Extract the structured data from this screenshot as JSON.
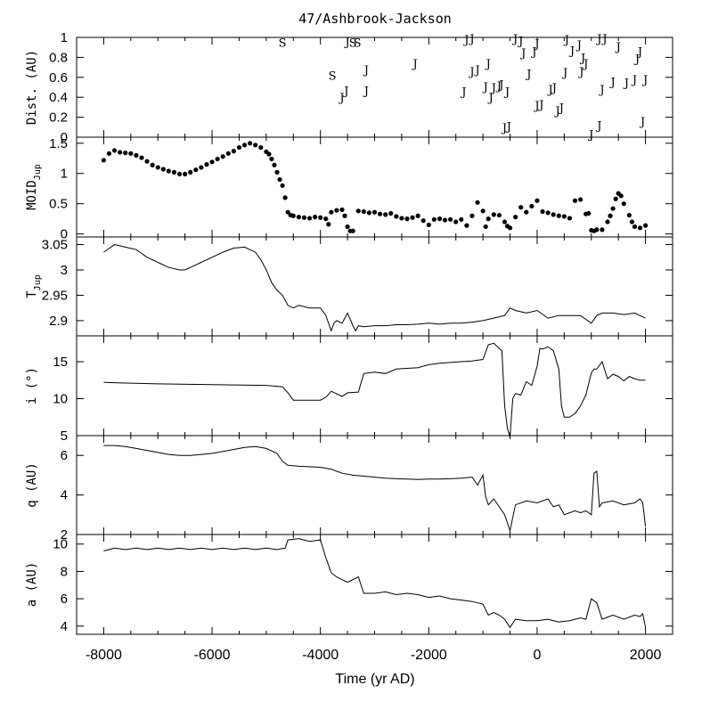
{
  "chart_data": [
    {
      "id": "dist",
      "type": "scatter",
      "title": "47/Ashbrook-Jackson",
      "ylabel": "Dist. (AU)",
      "ylim": [
        0,
        1
      ],
      "xlim": [
        -8500,
        2500
      ],
      "yticks": [
        0,
        0.2,
        0.4,
        0.6,
        0.8,
        1
      ],
      "ytick_labels": [
        "0",
        "0.2",
        "0.4",
        "0.6",
        "0.8",
        "1"
      ],
      "markers": [
        {
          "x": -4700,
          "y": 0.95,
          "label": "S"
        },
        {
          "x": -3780,
          "y": 0.62,
          "label": "S"
        },
        {
          "x": -3400,
          "y": 0.95,
          "label": "S"
        },
        {
          "x": -3320,
          "y": 0.95,
          "label": "S"
        },
        {
          "x": -3500,
          "y": 0.96,
          "label": "J"
        },
        {
          "x": -3600,
          "y": 0.4,
          "label": "J"
        },
        {
          "x": -3520,
          "y": 0.47,
          "label": "J"
        },
        {
          "x": -3150,
          "y": 0.47,
          "label": "J"
        },
        {
          "x": -3150,
          "y": 0.68,
          "label": "J"
        },
        {
          "x": -2250,
          "y": 0.74,
          "label": "J"
        },
        {
          "x": -1300,
          "y": 0.98,
          "label": "J"
        },
        {
          "x": -1200,
          "y": 0.99,
          "label": "J"
        },
        {
          "x": -1200,
          "y": 0.66,
          "label": "J"
        },
        {
          "x": -1100,
          "y": 0.68,
          "label": "J"
        },
        {
          "x": -1350,
          "y": 0.46,
          "label": "J"
        },
        {
          "x": -900,
          "y": 0.74,
          "label": "J"
        },
        {
          "x": -950,
          "y": 0.51,
          "label": "J"
        },
        {
          "x": -850,
          "y": 0.4,
          "label": "J"
        },
        {
          "x": -800,
          "y": 0.5,
          "label": "J"
        },
        {
          "x": -700,
          "y": 0.52,
          "label": "J"
        },
        {
          "x": -660,
          "y": 0.53,
          "label": "J"
        },
        {
          "x": -550,
          "y": 0.46,
          "label": "J"
        },
        {
          "x": -600,
          "y": 0.1,
          "label": "J"
        },
        {
          "x": -520,
          "y": 0.11,
          "label": "J"
        },
        {
          "x": -400,
          "y": 0.99,
          "label": "J"
        },
        {
          "x": -300,
          "y": 0.97,
          "label": "J"
        },
        {
          "x": -250,
          "y": 0.85,
          "label": "J"
        },
        {
          "x": -150,
          "y": 0.64,
          "label": "J"
        },
        {
          "x": -50,
          "y": 0.86,
          "label": "J"
        },
        {
          "x": 0,
          "y": 0.94,
          "label": "J"
        },
        {
          "x": 0,
          "y": 0.32,
          "label": "J"
        },
        {
          "x": 80,
          "y": 0.33,
          "label": "J"
        },
        {
          "x": 250,
          "y": 0.48,
          "label": "J"
        },
        {
          "x": 320,
          "y": 0.5,
          "label": "J"
        },
        {
          "x": 380,
          "y": 0.27,
          "label": "J"
        },
        {
          "x": 450,
          "y": 0.3,
          "label": "J"
        },
        {
          "x": 550,
          "y": 0.98,
          "label": "J"
        },
        {
          "x": 520,
          "y": 0.65,
          "label": "J"
        },
        {
          "x": 650,
          "y": 0.87,
          "label": "J"
        },
        {
          "x": 780,
          "y": 0.93,
          "label": "J"
        },
        {
          "x": 820,
          "y": 0.66,
          "label": "J"
        },
        {
          "x": 850,
          "y": 0.8,
          "label": "J"
        },
        {
          "x": 900,
          "y": 0.74,
          "label": "J"
        },
        {
          "x": 1000,
          "y": 0.03,
          "label": "J"
        },
        {
          "x": 1150,
          "y": 0.99,
          "label": "J"
        },
        {
          "x": 1250,
          "y": 0.99,
          "label": "J"
        },
        {
          "x": 1200,
          "y": 0.48,
          "label": "J"
        },
        {
          "x": 1150,
          "y": 0.12,
          "label": "J"
        },
        {
          "x": 1400,
          "y": 0.56,
          "label": "J"
        },
        {
          "x": 1500,
          "y": 0.91,
          "label": "J"
        },
        {
          "x": 1650,
          "y": 0.55,
          "label": "J"
        },
        {
          "x": 1850,
          "y": 0.79,
          "label": "J"
        },
        {
          "x": 1900,
          "y": 0.86,
          "label": "J"
        },
        {
          "x": 1800,
          "y": 0.58,
          "label": "J"
        },
        {
          "x": 2000,
          "y": 0.58,
          "label": "J"
        },
        {
          "x": 1950,
          "y": 0.16,
          "label": "J"
        }
      ]
    },
    {
      "id": "moid",
      "type": "scatter",
      "ylabel": "MOID",
      "ylabel_sub": "Jup",
      "ylim": [
        -0.05,
        1.6
      ],
      "xlim": [
        -8500,
        2500
      ],
      "yticks": [
        0,
        0.5,
        1,
        1.5
      ],
      "ytick_labels": [
        "0",
        "0.5",
        "1",
        "1.5"
      ],
      "x": [
        -8000,
        -7900,
        -7800,
        -7700,
        -7600,
        -7500,
        -7400,
        -7300,
        -7200,
        -7100,
        -7000,
        -6900,
        -6800,
        -6700,
        -6600,
        -6500,
        -6400,
        -6300,
        -6200,
        -6100,
        -6000,
        -5900,
        -5800,
        -5700,
        -5600,
        -5500,
        -5400,
        -5300,
        -5200,
        -5100,
        -5000,
        -4950,
        -4900,
        -4850,
        -4800,
        -4750,
        -4700,
        -4650,
        -4600,
        -4550,
        -4500,
        -4400,
        -4300,
        -4200,
        -4100,
        -4000,
        -3900,
        -3850,
        -3800,
        -3700,
        -3600,
        -3550,
        -3500,
        -3450,
        -3400,
        -3300,
        -3200,
        -3100,
        -3000,
        -2900,
        -2800,
        -2700,
        -2600,
        -2500,
        -2400,
        -2300,
        -2200,
        -2100,
        -2000,
        -1900,
        -1800,
        -1700,
        -1600,
        -1500,
        -1400,
        -1300,
        -1200,
        -1100,
        -1000,
        -950,
        -900,
        -800,
        -700,
        -600,
        -550,
        -500,
        -400,
        -300,
        -200,
        -100,
        0,
        100,
        200,
        300,
        400,
        500,
        600,
        700,
        800,
        900,
        950,
        1000,
        1050,
        1100,
        1200,
        1300,
        1350,
        1400,
        1450,
        1500,
        1550,
        1600,
        1700,
        1750,
        1800,
        1900,
        2000
      ],
      "values": [
        1.22,
        1.33,
        1.38,
        1.35,
        1.34,
        1.33,
        1.3,
        1.26,
        1.2,
        1.14,
        1.1,
        1.07,
        1.04,
        1.02,
        0.99,
        0.99,
        1.02,
        1.06,
        1.1,
        1.15,
        1.19,
        1.24,
        1.28,
        1.33,
        1.37,
        1.43,
        1.47,
        1.5,
        1.47,
        1.43,
        1.36,
        1.32,
        1.24,
        1.14,
        1.02,
        0.9,
        0.8,
        0.6,
        0.36,
        0.31,
        0.3,
        0.28,
        0.27,
        0.26,
        0.28,
        0.27,
        0.25,
        0.16,
        0.36,
        0.39,
        0.4,
        0.3,
        0.12,
        0.05,
        0.05,
        0.38,
        0.37,
        0.35,
        0.36,
        0.33,
        0.32,
        0.34,
        0.29,
        0.26,
        0.25,
        0.27,
        0.3,
        0.22,
        0.15,
        0.24,
        0.25,
        0.23,
        0.24,
        0.2,
        0.24,
        0.14,
        0.3,
        0.52,
        0.38,
        0.12,
        0.25,
        0.32,
        0.31,
        0.2,
        0.13,
        0.1,
        0.28,
        0.44,
        0.36,
        0.46,
        0.55,
        0.37,
        0.35,
        0.32,
        0.3,
        0.29,
        0.26,
        0.55,
        0.57,
        0.33,
        0.34,
        0.06,
        0.05,
        0.07,
        0.07,
        0.2,
        0.3,
        0.42,
        0.58,
        0.67,
        0.63,
        0.5,
        0.31,
        0.2,
        0.12,
        0.1,
        0.14
      ]
    },
    {
      "id": "tjup",
      "type": "line",
      "ylabel": "T",
      "ylabel_sub": "Jup",
      "ylim": [
        2.87,
        3.065
      ],
      "xlim": [
        -8500,
        2500
      ],
      "yticks": [
        2.9,
        2.95,
        3,
        3.05
      ],
      "ytick_labels": [
        "2.9",
        "2.95",
        "3",
        "3.05"
      ],
      "x": [
        -8000,
        -7800,
        -7600,
        -7400,
        -7200,
        -7000,
        -6800,
        -6600,
        -6500,
        -6400,
        -6200,
        -6000,
        -5800,
        -5600,
        -5400,
        -5300,
        -5200,
        -5100,
        -5000,
        -4900,
        -4800,
        -4700,
        -4600,
        -4500,
        -4400,
        -4200,
        -4000,
        -3900,
        -3800,
        -3750,
        -3700,
        -3600,
        -3500,
        -3400,
        -3350,
        -3300,
        -3200,
        -3000,
        -2800,
        -2600,
        -2400,
        -2200,
        -2000,
        -1800,
        -1600,
        -1400,
        -1200,
        -1000,
        -800,
        -600,
        -500,
        -400,
        -200,
        0,
        200,
        400,
        600,
        800,
        1000,
        1100,
        1200,
        1400,
        1600,
        1800,
        2000
      ],
      "values": [
        3.035,
        3.05,
        3.045,
        3.04,
        3.025,
        3.015,
        3.005,
        3.0,
        3.0,
        3.005,
        3.015,
        3.025,
        3.035,
        3.043,
        3.045,
        3.04,
        3.035,
        3.02,
        3.0,
        2.975,
        2.96,
        2.95,
        2.93,
        2.925,
        2.93,
        2.925,
        2.925,
        2.91,
        2.88,
        2.895,
        2.9,
        2.895,
        2.915,
        2.89,
        2.88,
        2.89,
        2.888,
        2.89,
        2.89,
        2.892,
        2.892,
        2.893,
        2.895,
        2.893,
        2.895,
        2.895,
        2.897,
        2.9,
        2.905,
        2.91,
        2.925,
        2.92,
        2.915,
        2.92,
        2.905,
        2.91,
        2.91,
        2.91,
        2.895,
        2.91,
        2.915,
        2.915,
        2.912,
        2.915,
        2.905
      ]
    },
    {
      "id": "incl",
      "type": "line",
      "ylabel": "i (°)",
      "ylim": [
        5,
        18.5
      ],
      "xlim": [
        -8500,
        2500
      ],
      "yticks": [
        5,
        10,
        15
      ],
      "ytick_labels": [
        "5",
        "10",
        "15"
      ],
      "x": [
        -8000,
        -7000,
        -6000,
        -5000,
        -4700,
        -4600,
        -4500,
        -4000,
        -3900,
        -3800,
        -3600,
        -3500,
        -3300,
        -3200,
        -3000,
        -2800,
        -2600,
        -2200,
        -2000,
        -1800,
        -1400,
        -1200,
        -1000,
        -900,
        -800,
        -700,
        -650,
        -600,
        -550,
        -500,
        -450,
        -400,
        -300,
        -200,
        -100,
        0,
        50,
        100,
        200,
        300,
        400,
        450,
        500,
        600,
        700,
        800,
        900,
        1000,
        1050,
        1100,
        1200,
        1300,
        1400,
        1500,
        1600,
        1700,
        1800,
        1900,
        2000
      ],
      "values": [
        12.2,
        12.0,
        11.9,
        11.8,
        11.6,
        10.8,
        9.8,
        9.8,
        10.2,
        11.0,
        10.3,
        10.8,
        10.9,
        13.4,
        13.6,
        13.4,
        14.0,
        14.2,
        14.6,
        14.8,
        15.0,
        15.1,
        15.3,
        17.3,
        17.5,
        16.8,
        16.5,
        9.0,
        6.0,
        4.8,
        10.0,
        10.7,
        10.5,
        12.3,
        11.8,
        14.4,
        16.8,
        16.7,
        17.0,
        16.5,
        14.0,
        9.0,
        7.5,
        7.5,
        8.0,
        9.0,
        10.5,
        13.5,
        14.0,
        14.0,
        15.0,
        12.7,
        13.3,
        13.0,
        12.4,
        13.0,
        12.7,
        12.5,
        12.5
      ]
    },
    {
      "id": "q",
      "type": "line",
      "ylabel": "q (AU)",
      "ylim": [
        2,
        7
      ],
      "xlim": [
        -8500,
        2500
      ],
      "yticks": [
        2,
        4,
        6
      ],
      "ytick_labels": [
        "2",
        "4",
        "6"
      ],
      "x": [
        -8000,
        -7800,
        -7600,
        -7400,
        -7200,
        -7000,
        -6800,
        -6600,
        -6400,
        -6200,
        -6000,
        -5800,
        -5600,
        -5400,
        -5200,
        -5000,
        -4800,
        -4700,
        -4600,
        -4400,
        -4000,
        -3800,
        -3600,
        -3400,
        -3200,
        -3000,
        -2800,
        -2600,
        -2400,
        -2200,
        -2000,
        -1800,
        -1600,
        -1400,
        -1200,
        -1100,
        -1000,
        -950,
        -900,
        -800,
        -700,
        -600,
        -500,
        -400,
        -200,
        0,
        200,
        300,
        400,
        500,
        600,
        700,
        800,
        900,
        1000,
        1050,
        1100,
        1150,
        1200,
        1400,
        1600,
        1800,
        1900,
        1950,
        2000
      ],
      "values": [
        6.5,
        6.5,
        6.45,
        6.35,
        6.25,
        6.15,
        6.05,
        6.0,
        6.0,
        6.05,
        6.1,
        6.2,
        6.3,
        6.4,
        6.45,
        6.35,
        6.1,
        5.7,
        5.5,
        5.45,
        5.4,
        5.3,
        5.1,
        5.0,
        4.95,
        4.9,
        4.85,
        4.82,
        4.8,
        4.78,
        4.8,
        4.8,
        4.82,
        4.85,
        4.9,
        4.5,
        5.0,
        3.9,
        3.5,
        3.8,
        3.4,
        3.0,
        2.2,
        3.5,
        3.7,
        3.6,
        3.8,
        3.4,
        3.5,
        3.0,
        3.1,
        3.2,
        3.1,
        3.2,
        3.0,
        5.1,
        5.2,
        3.4,
        3.6,
        3.7,
        3.5,
        3.6,
        3.8,
        3.6,
        2.4
      ]
    },
    {
      "id": "a",
      "type": "line",
      "ylabel": "a (AU)",
      "ylim": [
        3.4,
        10.7
      ],
      "xlim": [
        -8500,
        2500
      ],
      "yticks": [
        4,
        6,
        8,
        10
      ],
      "ytick_labels": [
        "4",
        "6",
        "8",
        "10"
      ],
      "xticks": [
        -8000,
        -6000,
        -4000,
        -2000,
        0,
        2000
      ],
      "xtick_labels": [
        "-8000",
        "-6000",
        "-4000",
        "-2000",
        "0",
        "2000"
      ],
      "xlabel": "Time (yr AD)",
      "x": [
        -8000,
        -7800,
        -7600,
        -7400,
        -7200,
        -7000,
        -6800,
        -6600,
        -6400,
        -6200,
        -6000,
        -5800,
        -5600,
        -5400,
        -5200,
        -5000,
        -4800,
        -4650,
        -4600,
        -4400,
        -4200,
        -4000,
        -3900,
        -3800,
        -3700,
        -3500,
        -3300,
        -3200,
        -3000,
        -2800,
        -2600,
        -2400,
        -2200,
        -2000,
        -1800,
        -1600,
        -1400,
        -1200,
        -1000,
        -900,
        -800,
        -700,
        -600,
        -500,
        -400,
        -200,
        0,
        200,
        400,
        600,
        800,
        900,
        1000,
        1100,
        1200,
        1400,
        1600,
        1800,
        1900,
        1950,
        2000
      ],
      "values": [
        9.5,
        9.7,
        9.6,
        9.7,
        9.6,
        9.7,
        9.6,
        9.7,
        9.6,
        9.7,
        9.6,
        9.7,
        9.6,
        9.7,
        9.6,
        9.7,
        9.6,
        9.7,
        10.3,
        10.4,
        10.2,
        10.3,
        9.0,
        7.9,
        7.6,
        7.2,
        7.6,
        6.4,
        6.4,
        6.5,
        6.3,
        6.4,
        6.3,
        6.1,
        6.2,
        6.0,
        5.9,
        5.8,
        5.6,
        4.8,
        5.0,
        4.8,
        4.5,
        3.9,
        4.5,
        4.4,
        4.4,
        4.5,
        4.3,
        4.4,
        4.6,
        4.5,
        6.0,
        5.7,
        4.5,
        4.8,
        4.5,
        4.8,
        4.7,
        4.9,
        3.9
      ]
    }
  ]
}
